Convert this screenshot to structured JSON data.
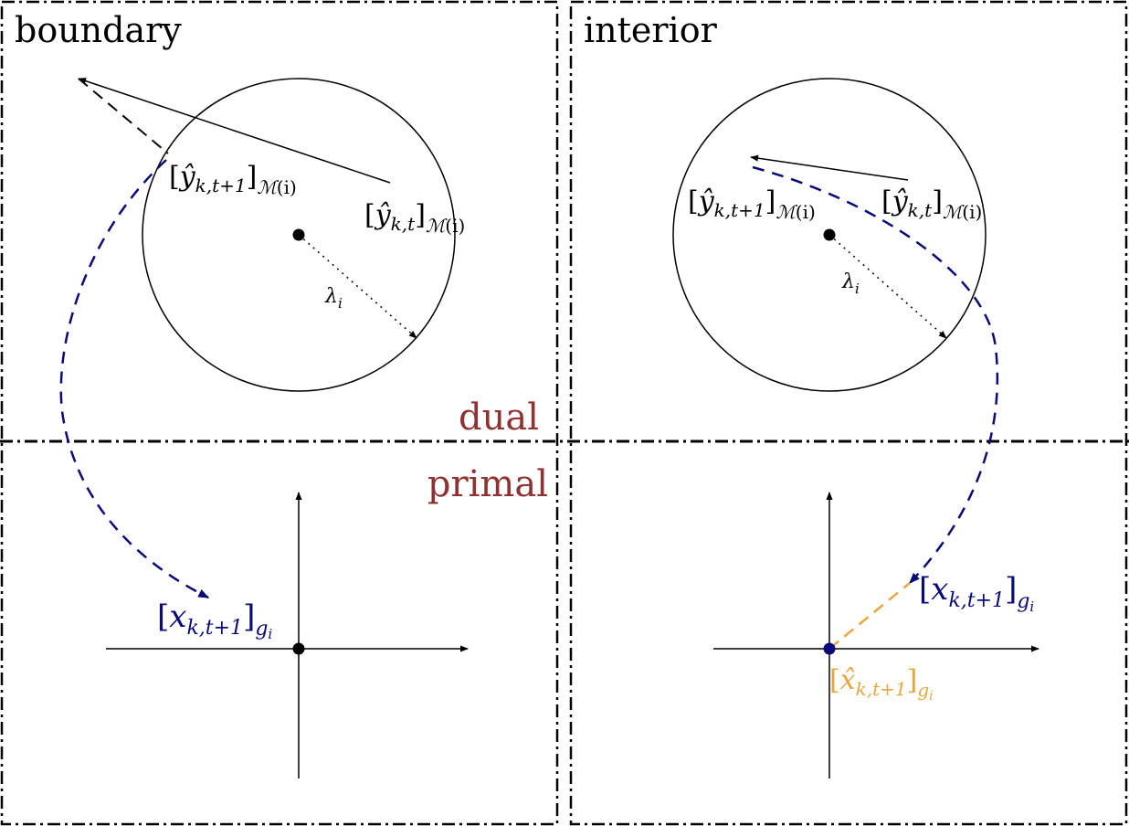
{
  "panels": {
    "left": {
      "title": "boundary"
    },
    "right": {
      "title": "interior"
    }
  },
  "regions": {
    "dual": "dual",
    "primal": "primal"
  },
  "math": {
    "open_bracket": "[",
    "close_bracket": "]",
    "y": "y",
    "hat_y": "ŷ",
    "x": "x",
    "hat_x": "x̂",
    "sub_k_t1": "k,t+1",
    "sub_k_t": "k,t",
    "sub_M": "ℳ",
    "sub_i_paren": "(i)",
    "sub_g": "g",
    "sub_i": "i",
    "lambda": "λ"
  },
  "colors": {
    "navy": "#0a0a78",
    "orange": "#eba53c",
    "dark_red": "#8e3232",
    "black": "#000000"
  }
}
